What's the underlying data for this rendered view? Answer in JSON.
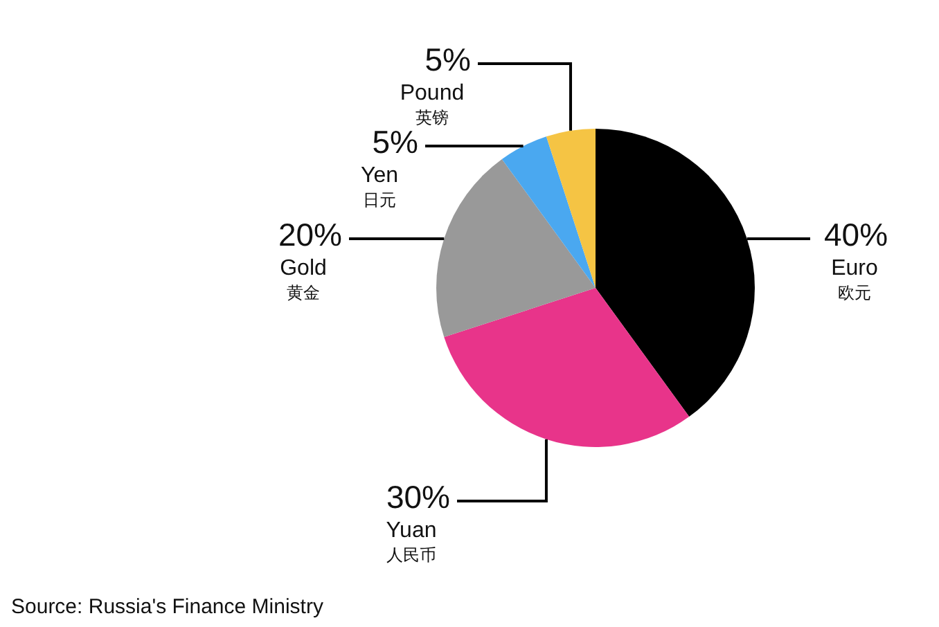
{
  "chart_data": {
    "type": "pie",
    "categories": [
      "Euro\n欧元",
      "Yuan\n人民币",
      "Gold\n黄金",
      "Yen\n日元",
      "Pound\n英镑"
    ],
    "values": [
      40,
      30,
      20,
      5,
      5
    ],
    "value_labels": [
      "40%",
      "30%",
      "20%",
      "5%",
      "5%"
    ],
    "colors": [
      "#000000",
      "#e8348a",
      "#999999",
      "#4aa8f0",
      "#f5c444"
    ],
    "annotations": [
      "Source: Russia's Finance Ministry"
    ]
  }
}
